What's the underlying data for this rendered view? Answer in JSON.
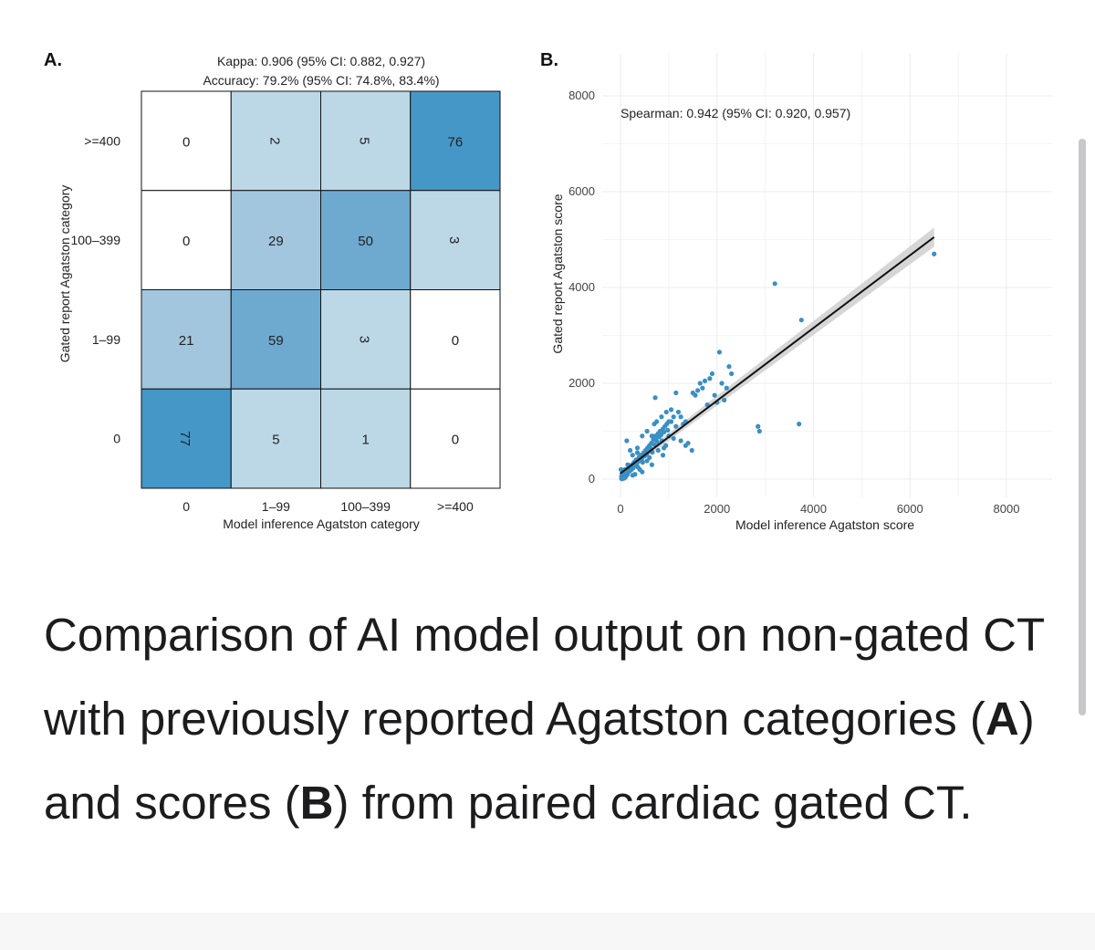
{
  "chart_data": [
    {
      "type": "heatmap",
      "panel_label": "A.",
      "title_line1": "Kappa: 0.906 (95% CI: 0.882, 0.927)",
      "title_line2": "Accuracy: 79.2% (95% CI: 74.8%, 83.4%)",
      "xlabel": "Model inference Agatston category",
      "ylabel": "Gated report Agatston category",
      "x_categories": [
        "0",
        "1–99",
        "100–399",
        ">=400"
      ],
      "y_categories": [
        ">=400",
        "100–399",
        "1–99",
        "0"
      ],
      "matrix": [
        [
          0,
          2,
          5,
          76
        ],
        [
          0,
          29,
          50,
          3
        ],
        [
          21,
          59,
          3,
          0
        ],
        [
          77,
          5,
          1,
          0
        ]
      ],
      "rotated_cells": [
        [
          0,
          1
        ],
        [
          0,
          2
        ],
        [
          1,
          3
        ],
        [
          2,
          2
        ],
        [
          3,
          0
        ]
      ]
    },
    {
      "type": "scatter",
      "panel_label": "B.",
      "annotation": "Spearman: 0.942 (95% CI: 0.920, 0.957)",
      "xlabel": "Model inference Agatston score",
      "ylabel": "Gated report Agatston score",
      "xlim": [
        0,
        8500
      ],
      "ylim": [
        0,
        8000
      ],
      "xticks": [
        "0",
        "2000",
        "4000",
        "6000",
        "8000"
      ],
      "yticks": [
        "0",
        "2000",
        "4000",
        "6000",
        "8000"
      ],
      "point_color": "#3b8fc4",
      "fit_line": {
        "x": [
          0,
          6500
        ],
        "y": [
          120,
          5050
        ],
        "ci_half_width_end": 200
      },
      "points": [
        [
          20,
          10
        ],
        [
          40,
          30
        ],
        [
          60,
          50
        ],
        [
          80,
          70
        ],
        [
          100,
          80
        ],
        [
          120,
          100
        ],
        [
          150,
          130
        ],
        [
          30,
          120
        ],
        [
          50,
          150
        ],
        [
          70,
          40
        ],
        [
          90,
          200
        ],
        [
          110,
          180
        ],
        [
          140,
          90
        ],
        [
          160,
          220
        ],
        [
          180,
          160
        ],
        [
          200,
          260
        ],
        [
          220,
          190
        ],
        [
          240,
          300
        ],
        [
          260,
          230
        ],
        [
          280,
          350
        ],
        [
          300,
          280
        ],
        [
          320,
          400
        ],
        [
          340,
          330
        ],
        [
          360,
          250
        ],
        [
          380,
          450
        ],
        [
          400,
          380
        ],
        [
          420,
          500
        ],
        [
          440,
          420
        ],
        [
          460,
          350
        ],
        [
          480,
          550
        ],
        [
          500,
          480
        ],
        [
          520,
          600
        ],
        [
          540,
          520
        ],
        [
          560,
          650
        ],
        [
          580,
          580
        ],
        [
          600,
          700
        ],
        [
          620,
          640
        ],
        [
          640,
          750
        ],
        [
          660,
          560
        ],
        [
          680,
          820
        ],
        [
          700,
          720
        ],
        [
          720,
          900
        ],
        [
          740,
          850
        ],
        [
          760,
          780
        ],
        [
          780,
          950
        ],
        [
          800,
          880
        ],
        [
          820,
          1000
        ],
        [
          840,
          920
        ],
        [
          860,
          800
        ],
        [
          880,
          1050
        ],
        [
          900,
          980
        ],
        [
          920,
          1100
        ],
        [
          940,
          700
        ],
        [
          960,
          1150
        ],
        [
          980,
          1020
        ],
        [
          1000,
          900
        ],
        [
          1050,
          1200
        ],
        [
          1100,
          1300
        ],
        [
          1150,
          1100
        ],
        [
          1200,
          1400
        ],
        [
          1250,
          1300
        ],
        [
          1300,
          1150
        ],
        [
          1350,
          700
        ],
        [
          1400,
          750
        ],
        [
          1480,
          600
        ],
        [
          1500,
          1800
        ],
        [
          1550,
          1750
        ],
        [
          1600,
          1850
        ],
        [
          1650,
          2000
        ],
        [
          1700,
          1900
        ],
        [
          1750,
          2050
        ],
        [
          1800,
          1550
        ],
        [
          1850,
          2100
        ],
        [
          1900,
          2200
        ],
        [
          1950,
          1750
        ],
        [
          2000,
          1600
        ],
        [
          2050,
          2650
        ],
        [
          2100,
          2000
        ],
        [
          2150,
          1650
        ],
        [
          2200,
          1900
        ],
        [
          2250,
          2350
        ],
        [
          2300,
          2200
        ],
        [
          2850,
          1100
        ],
        [
          2880,
          1000
        ],
        [
          3200,
          4080
        ],
        [
          3700,
          1150
        ],
        [
          3750,
          3320
        ],
        [
          6500,
          4700
        ],
        [
          130,
          800
        ],
        [
          200,
          600
        ],
        [
          250,
          500
        ],
        [
          350,
          650
        ],
        [
          450,
          900
        ],
        [
          550,
          1000
        ],
        [
          650,
          300
        ],
        [
          700,
          1150
        ],
        [
          750,
          1200
        ],
        [
          850,
          1300
        ],
        [
          950,
          1400
        ],
        [
          1050,
          1450
        ],
        [
          1150,
          1800
        ],
        [
          1250,
          800
        ],
        [
          1350,
          1200
        ],
        [
          720,
          1700
        ],
        [
          880,
          500
        ],
        [
          600,
          450
        ],
        [
          400,
          200
        ],
        [
          300,
          100
        ],
        [
          150,
          300
        ],
        [
          250,
          80
        ],
        [
          350,
          550
        ],
        [
          450,
          150
        ],
        [
          550,
          380
        ],
        [
          650,
          900
        ],
        [
          780,
          600
        ],
        [
          900,
          650
        ],
        [
          1000,
          1200
        ],
        [
          1100,
          850
        ],
        [
          10,
          200
        ],
        [
          20,
          60
        ],
        [
          35,
          5
        ],
        [
          45,
          90
        ],
        [
          55,
          25
        ],
        [
          65,
          140
        ],
        [
          75,
          110
        ],
        [
          85,
          20
        ],
        [
          95,
          160
        ],
        [
          105,
          45
        ]
      ]
    }
  ],
  "caption": {
    "text_1": "Comparison of AI model output on non-gated CT with previously reported Agatston categories (",
    "bold_a": "A",
    "text_2": ") and scores (",
    "bold_b": "B",
    "text_3": ") from paired cardiac gated CT."
  },
  "colors": {
    "cell_high": "#4597c8",
    "cell_mid_high": "#6ea9d0",
    "cell_mid": "#a2c6dd",
    "cell_low": "#bcd8e7",
    "cell_zero": "#ffffff",
    "grid": "#ececec",
    "caption_text": "#1c1c1e"
  }
}
